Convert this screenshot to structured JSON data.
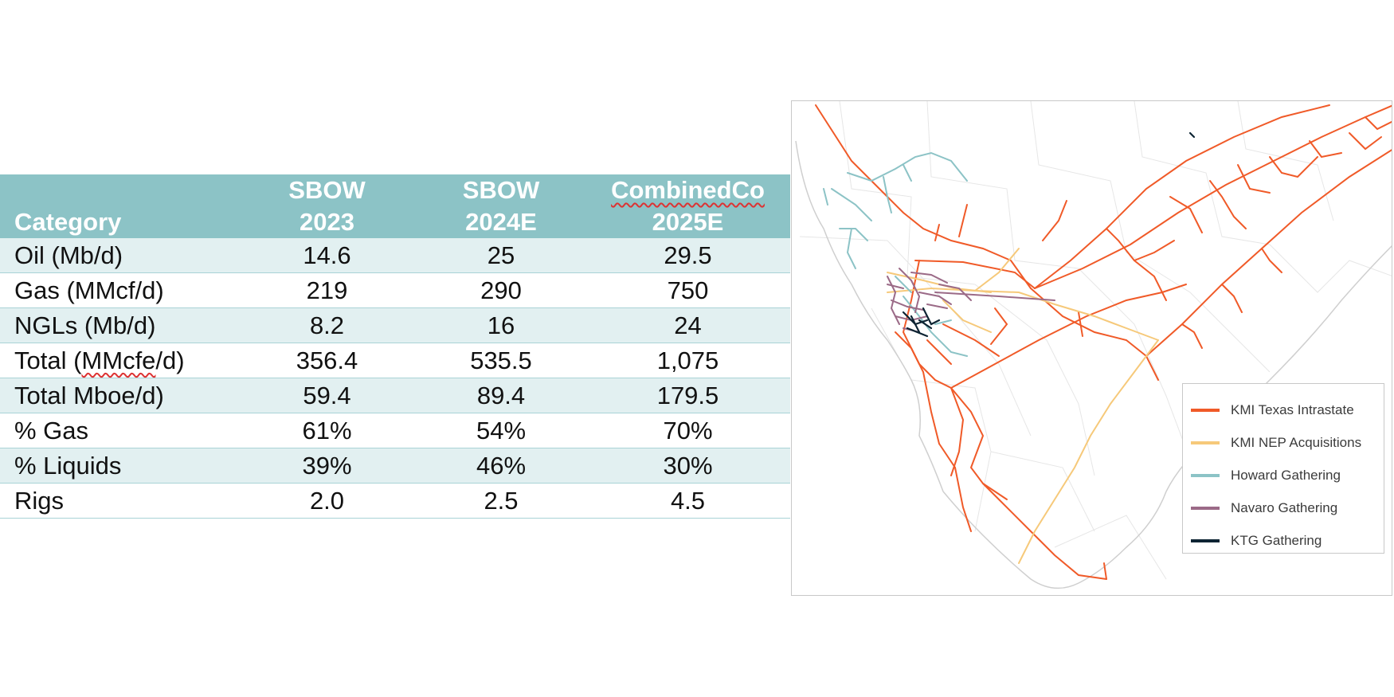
{
  "table": {
    "headers": [
      {
        "line1": "",
        "line2": "Category"
      },
      {
        "line1": "SBOW",
        "line2": "2023"
      },
      {
        "line1": "SBOW",
        "line2": "2024E"
      },
      {
        "line1": "CombinedCo",
        "line2": "2025E"
      }
    ],
    "rows": [
      {
        "category": "Oil (Mb/d)",
        "sbow_2023": "14.6",
        "sbow_2024e": "25",
        "combinedco_2025e": "29.5"
      },
      {
        "category": "Gas (MMcf/d)",
        "sbow_2023": "219",
        "sbow_2024e": "290",
        "combinedco_2025e": "750"
      },
      {
        "category": "NGLs (Mb/d)",
        "sbow_2023": "8.2",
        "sbow_2024e": "16",
        "combinedco_2025e": "24"
      },
      {
        "category_prefix": "Total (",
        "category_squiggle": "MMcfe",
        "category_suffix": "/d)",
        "sbow_2023": "356.4",
        "sbow_2024e": "535.5",
        "combinedco_2025e": "1,075"
      },
      {
        "category": "Total Mboe/d)",
        "sbow_2023": "59.4",
        "sbow_2024e": "89.4",
        "combinedco_2025e": "179.5"
      },
      {
        "category": "% Gas",
        "sbow_2023": "61%",
        "sbow_2024e": "54%",
        "combinedco_2025e": "70%"
      },
      {
        "category": "% Liquids",
        "sbow_2023": "39%",
        "sbow_2024e": "46%",
        "combinedco_2025e": "30%"
      },
      {
        "category": "Rigs",
        "sbow_2023": "2.0",
        "sbow_2024e": "2.5",
        "combinedco_2025e": "4.5"
      }
    ]
  },
  "map": {
    "legend": [
      {
        "label": "KMI Texas Intrastate",
        "color": "#f05a28"
      },
      {
        "label": "KMI NEP Acquisitions",
        "color": "#f6c97a"
      },
      {
        "label": "Howard Gathering",
        "color": "#8cc3c6"
      },
      {
        "label": "Navaro Gathering",
        "color": "#9b6a87"
      },
      {
        "label": "KTG Gathering",
        "color": "#0d2433"
      }
    ]
  },
  "colors": {
    "header_bg": "#8cc3c6",
    "band_bg": "#e2f0f1",
    "row_rule": "#a9d3d6"
  }
}
